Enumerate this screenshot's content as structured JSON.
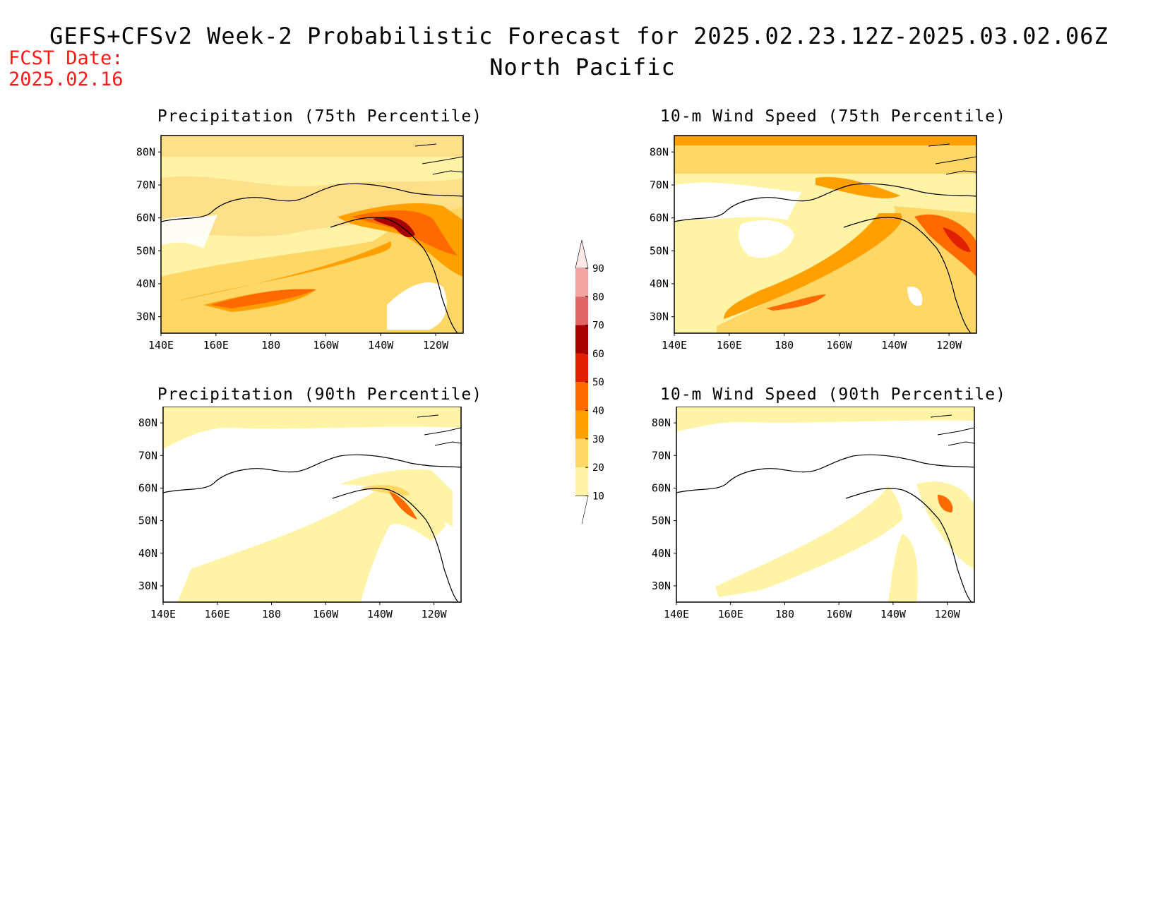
{
  "header": {
    "title_line1": "GEFS+CFSv2 Week-2 Probabilistic Forecast for 2025.02.23.12Z-2025.03.02.06Z",
    "title_line2": "North Pacific",
    "fcst_label": "FCST Date:",
    "fcst_date": "2025.02.16"
  },
  "axes": {
    "lon_ticks": [
      "140E",
      "160E",
      "180",
      "160W",
      "140W",
      "120W"
    ],
    "lat_ticks": [
      "80N",
      "70N",
      "60N",
      "50N",
      "40N",
      "30N"
    ]
  },
  "panels": [
    {
      "id": "p1",
      "title": "Precipitation (75th Percentile)"
    },
    {
      "id": "p2",
      "title": "10-m Wind Speed (75th Percentile)"
    },
    {
      "id": "p3",
      "title": "Precipitation (90th Percentile)"
    },
    {
      "id": "p4",
      "title": "10-m Wind Speed (90th Percentile)"
    }
  ],
  "colorbar": {
    "levels": [
      "90",
      "80",
      "70",
      "60",
      "50",
      "40",
      "30",
      "20",
      "10"
    ],
    "colors": [
      "#f4a3a3",
      "#e06666",
      "#a80000",
      "#e02000",
      "#ff6a00",
      "#ffa000",
      "#ffd766",
      "#fff3a6"
    ]
  }
}
